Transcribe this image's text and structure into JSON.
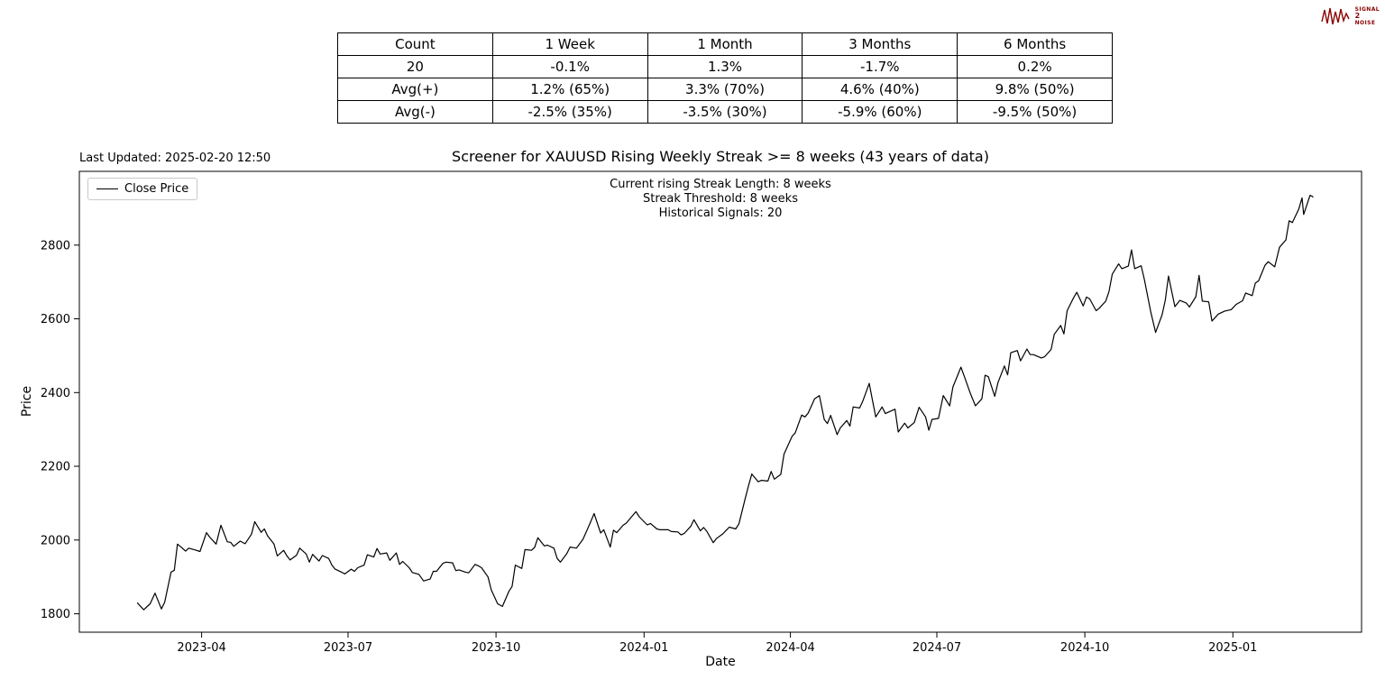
{
  "logo": {
    "text_lines": [
      "SIGNAL",
      "2",
      "NOISE"
    ],
    "color": "#8B0000"
  },
  "table": {
    "headers": [
      "Count",
      "1 Week",
      "1 Month",
      "3 Months",
      "6 Months"
    ],
    "rows": [
      [
        "20",
        "-0.1%",
        "1.3%",
        "-1.7%",
        "0.2%"
      ],
      [
        "Avg(+)",
        "1.2% (65%)",
        "3.3% (70%)",
        "4.6% (40%)",
        "9.8% (50%)"
      ],
      [
        "Avg(-)",
        "-2.5% (35%)",
        "-3.5% (30%)",
        "-5.9% (60%)",
        "-9.5% (50%)"
      ]
    ]
  },
  "chart": {
    "last_updated": "Last Updated: 2025-02-20 12:50",
    "title": "Screener for XAUUSD Rising Weekly Streak >= 8 weeks (43 years of data)",
    "annotation_lines": [
      "Current rising Streak Length: 8 weeks",
      "Streak Threshold: 8 weeks",
      "Historical Signals: 20"
    ],
    "legend_label": "Close Price",
    "xlabel": "Date",
    "ylabel": "Price",
    "line_color": "#000000"
  },
  "chart_data": {
    "type": "line",
    "title": "Screener for XAUUSD Rising Weekly Streak >= 8 weeks (43 years of data)",
    "xlabel": "Date",
    "ylabel": "Price",
    "legend_position": "upper-left",
    "grid": false,
    "ylim": [
      1750,
      3000
    ],
    "xlim": [
      "2023-01-15",
      "2025-03-22"
    ],
    "y_ticks": [
      1800,
      2000,
      2200,
      2400,
      2600,
      2800
    ],
    "x_ticks": [
      {
        "label": "2023-04",
        "date": "2023-04-01"
      },
      {
        "label": "2023-07",
        "date": "2023-07-01"
      },
      {
        "label": "2023-10",
        "date": "2023-10-01"
      },
      {
        "label": "2024-01",
        "date": "2024-01-01"
      },
      {
        "label": "2024-04",
        "date": "2024-04-01"
      },
      {
        "label": "2024-07",
        "date": "2024-07-01"
      },
      {
        "label": "2024-10",
        "date": "2024-10-01"
      },
      {
        "label": "2025-01",
        "date": "2025-01-01"
      }
    ],
    "series": [
      {
        "name": "Close Price",
        "color": "#000000",
        "points": [
          [
            "2023-02-20",
            1830
          ],
          [
            "2023-02-24",
            1811
          ],
          [
            "2023-02-28",
            1827
          ],
          [
            "2023-03-03",
            1856
          ],
          [
            "2023-03-07",
            1813
          ],
          [
            "2023-03-09",
            1831
          ],
          [
            "2023-03-13",
            1913
          ],
          [
            "2023-03-15",
            1918
          ],
          [
            "2023-03-17",
            1989
          ],
          [
            "2023-03-20",
            1978
          ],
          [
            "2023-03-22",
            1970
          ],
          [
            "2023-03-24",
            1978
          ],
          [
            "2023-03-28",
            1973
          ],
          [
            "2023-03-31",
            1969
          ],
          [
            "2023-04-04",
            2020
          ],
          [
            "2023-04-06",
            2008
          ],
          [
            "2023-04-10",
            1989
          ],
          [
            "2023-04-13",
            2040
          ],
          [
            "2023-04-17",
            1995
          ],
          [
            "2023-04-19",
            1994
          ],
          [
            "2023-04-21",
            1983
          ],
          [
            "2023-04-25",
            1997
          ],
          [
            "2023-04-28",
            1990
          ],
          [
            "2023-05-02",
            2016
          ],
          [
            "2023-05-04",
            2050
          ],
          [
            "2023-05-08",
            2021
          ],
          [
            "2023-05-10",
            2030
          ],
          [
            "2023-05-12",
            2011
          ],
          [
            "2023-05-16",
            1989
          ],
          [
            "2023-05-18",
            1957
          ],
          [
            "2023-05-22",
            1972
          ],
          [
            "2023-05-24",
            1957
          ],
          [
            "2023-05-26",
            1946
          ],
          [
            "2023-05-30",
            1959
          ],
          [
            "2023-06-01",
            1978
          ],
          [
            "2023-06-05",
            1962
          ],
          [
            "2023-06-07",
            1940
          ],
          [
            "2023-06-09",
            1961
          ],
          [
            "2023-06-13",
            1943
          ],
          [
            "2023-06-15",
            1958
          ],
          [
            "2023-06-19",
            1950
          ],
          [
            "2023-06-21",
            1932
          ],
          [
            "2023-06-23",
            1921
          ],
          [
            "2023-06-27",
            1913
          ],
          [
            "2023-06-29",
            1908
          ],
          [
            "2023-07-03",
            1921
          ],
          [
            "2023-07-05",
            1915
          ],
          [
            "2023-07-07",
            1925
          ],
          [
            "2023-07-11",
            1932
          ],
          [
            "2023-07-13",
            1960
          ],
          [
            "2023-07-17",
            1954
          ],
          [
            "2023-07-19",
            1977
          ],
          [
            "2023-07-21",
            1962
          ],
          [
            "2023-07-25",
            1965
          ],
          [
            "2023-07-27",
            1945
          ],
          [
            "2023-07-31",
            1965
          ],
          [
            "2023-08-02",
            1934
          ],
          [
            "2023-08-04",
            1942
          ],
          [
            "2023-08-08",
            1925
          ],
          [
            "2023-08-10",
            1912
          ],
          [
            "2023-08-14",
            1907
          ],
          [
            "2023-08-17",
            1889
          ],
          [
            "2023-08-21",
            1894
          ],
          [
            "2023-08-23",
            1915
          ],
          [
            "2023-08-25",
            1915
          ],
          [
            "2023-08-29",
            1937
          ],
          [
            "2023-08-31",
            1940
          ],
          [
            "2023-09-04",
            1938
          ],
          [
            "2023-09-06",
            1917
          ],
          [
            "2023-09-08",
            1919
          ],
          [
            "2023-09-12",
            1913
          ],
          [
            "2023-09-14",
            1911
          ],
          [
            "2023-09-18",
            1934
          ],
          [
            "2023-09-20",
            1930
          ],
          [
            "2023-09-22",
            1925
          ],
          [
            "2023-09-26",
            1900
          ],
          [
            "2023-09-28",
            1865
          ],
          [
            "2023-10-02",
            1827
          ],
          [
            "2023-10-05",
            1820
          ],
          [
            "2023-10-09",
            1861
          ],
          [
            "2023-10-11",
            1874
          ],
          [
            "2023-10-13",
            1932
          ],
          [
            "2023-10-17",
            1923
          ],
          [
            "2023-10-19",
            1974
          ],
          [
            "2023-10-23",
            1972
          ],
          [
            "2023-10-25",
            1980
          ],
          [
            "2023-10-27",
            2006
          ],
          [
            "2023-10-31",
            1984
          ],
          [
            "2023-11-02",
            1986
          ],
          [
            "2023-11-06",
            1978
          ],
          [
            "2023-11-08",
            1950
          ],
          [
            "2023-11-10",
            1940
          ],
          [
            "2023-11-14",
            1963
          ],
          [
            "2023-11-16",
            1981
          ],
          [
            "2023-11-20",
            1978
          ],
          [
            "2023-11-22",
            1990
          ],
          [
            "2023-11-24",
            2002
          ],
          [
            "2023-11-28",
            2041
          ],
          [
            "2023-12-01",
            2072
          ],
          [
            "2023-12-05",
            2019
          ],
          [
            "2023-12-07",
            2028
          ],
          [
            "2023-12-11",
            1981
          ],
          [
            "2023-12-13",
            2027
          ],
          [
            "2023-12-15",
            2020
          ],
          [
            "2023-12-19",
            2040
          ],
          [
            "2023-12-21",
            2046
          ],
          [
            "2023-12-27",
            2077
          ],
          [
            "2023-12-29",
            2063
          ],
          [
            "2024-01-03",
            2041
          ],
          [
            "2024-01-05",
            2045
          ],
          [
            "2024-01-09",
            2030
          ],
          [
            "2024-01-11",
            2028
          ],
          [
            "2024-01-16",
            2028
          ],
          [
            "2024-01-18",
            2023
          ],
          [
            "2024-01-22",
            2022
          ],
          [
            "2024-01-24",
            2014
          ],
          [
            "2024-01-26",
            2018
          ],
          [
            "2024-01-30",
            2037
          ],
          [
            "2024-02-01",
            2055
          ],
          [
            "2024-02-05",
            2025
          ],
          [
            "2024-02-07",
            2034
          ],
          [
            "2024-02-09",
            2024
          ],
          [
            "2024-02-13",
            1993
          ],
          [
            "2024-02-15",
            2004
          ],
          [
            "2024-02-19",
            2017
          ],
          [
            "2024-02-21",
            2026
          ],
          [
            "2024-02-23",
            2035
          ],
          [
            "2024-02-27",
            2030
          ],
          [
            "2024-02-29",
            2044
          ],
          [
            "2024-03-04",
            2115
          ],
          [
            "2024-03-06",
            2148
          ],
          [
            "2024-03-08",
            2179
          ],
          [
            "2024-03-12",
            2158
          ],
          [
            "2024-03-14",
            2162
          ],
          [
            "2024-03-18",
            2160
          ],
          [
            "2024-03-20",
            2186
          ],
          [
            "2024-03-22",
            2165
          ],
          [
            "2024-03-26",
            2178
          ],
          [
            "2024-03-28",
            2233
          ],
          [
            "2024-04-02",
            2281
          ],
          [
            "2024-04-04",
            2291
          ],
          [
            "2024-04-08",
            2339
          ],
          [
            "2024-04-10",
            2334
          ],
          [
            "2024-04-12",
            2344
          ],
          [
            "2024-04-16",
            2383
          ],
          [
            "2024-04-19",
            2392
          ],
          [
            "2024-04-22",
            2327
          ],
          [
            "2024-04-24",
            2316
          ],
          [
            "2024-04-26",
            2338
          ],
          [
            "2024-04-30",
            2286
          ],
          [
            "2024-05-02",
            2304
          ],
          [
            "2024-05-06",
            2324
          ],
          [
            "2024-05-08",
            2309
          ],
          [
            "2024-05-10",
            2361
          ],
          [
            "2024-05-14",
            2358
          ],
          [
            "2024-05-16",
            2377
          ],
          [
            "2024-05-20",
            2425
          ],
          [
            "2024-05-22",
            2379
          ],
          [
            "2024-05-24",
            2334
          ],
          [
            "2024-05-28",
            2361
          ],
          [
            "2024-05-30",
            2343
          ],
          [
            "2024-06-03",
            2351
          ],
          [
            "2024-06-05",
            2355
          ],
          [
            "2024-06-07",
            2293
          ],
          [
            "2024-06-11",
            2317
          ],
          [
            "2024-06-13",
            2304
          ],
          [
            "2024-06-17",
            2319
          ],
          [
            "2024-06-20",
            2360
          ],
          [
            "2024-06-24",
            2334
          ],
          [
            "2024-06-26",
            2298
          ],
          [
            "2024-06-28",
            2327
          ],
          [
            "2024-07-02",
            2330
          ],
          [
            "2024-07-05",
            2392
          ],
          [
            "2024-07-09",
            2364
          ],
          [
            "2024-07-11",
            2415
          ],
          [
            "2024-07-16",
            2469
          ],
          [
            "2024-07-18",
            2445
          ],
          [
            "2024-07-22",
            2396
          ],
          [
            "2024-07-25",
            2364
          ],
          [
            "2024-07-29",
            2383
          ],
          [
            "2024-07-31",
            2447
          ],
          [
            "2024-08-02",
            2443
          ],
          [
            "2024-08-06",
            2390
          ],
          [
            "2024-08-08",
            2427
          ],
          [
            "2024-08-12",
            2472
          ],
          [
            "2024-08-14",
            2448
          ],
          [
            "2024-08-16",
            2508
          ],
          [
            "2024-08-20",
            2514
          ],
          [
            "2024-08-22",
            2486
          ],
          [
            "2024-08-26",
            2518
          ],
          [
            "2024-08-28",
            2503
          ],
          [
            "2024-08-30",
            2503
          ],
          [
            "2024-09-04",
            2494
          ],
          [
            "2024-09-06",
            2497
          ],
          [
            "2024-09-10",
            2517
          ],
          [
            "2024-09-12",
            2558
          ],
          [
            "2024-09-16",
            2582
          ],
          [
            "2024-09-18",
            2559
          ],
          [
            "2024-09-20",
            2622
          ],
          [
            "2024-09-24",
            2657
          ],
          [
            "2024-09-26",
            2672
          ],
          [
            "2024-09-30",
            2635
          ],
          [
            "2024-10-02",
            2659
          ],
          [
            "2024-10-04",
            2654
          ],
          [
            "2024-10-08",
            2622
          ],
          [
            "2024-10-10",
            2629
          ],
          [
            "2024-10-14",
            2648
          ],
          [
            "2024-10-16",
            2674
          ],
          [
            "2024-10-18",
            2721
          ],
          [
            "2024-10-22",
            2749
          ],
          [
            "2024-10-24",
            2736
          ],
          [
            "2024-10-28",
            2743
          ],
          [
            "2024-10-30",
            2787
          ],
          [
            "2024-11-01",
            2736
          ],
          [
            "2024-11-05",
            2744
          ],
          [
            "2024-11-07",
            2707
          ],
          [
            "2024-11-11",
            2618
          ],
          [
            "2024-11-14",
            2563
          ],
          [
            "2024-11-18",
            2611
          ],
          [
            "2024-11-20",
            2650
          ],
          [
            "2024-11-22",
            2716
          ],
          [
            "2024-11-26",
            2633
          ],
          [
            "2024-11-29",
            2650
          ],
          [
            "2024-12-03",
            2643
          ],
          [
            "2024-12-05",
            2632
          ],
          [
            "2024-12-09",
            2660
          ],
          [
            "2024-12-11",
            2718
          ],
          [
            "2024-12-13",
            2648
          ],
          [
            "2024-12-17",
            2646
          ],
          [
            "2024-12-19",
            2594
          ],
          [
            "2024-12-23",
            2613
          ],
          [
            "2024-12-27",
            2621
          ],
          [
            "2024-12-31",
            2625
          ],
          [
            "2025-01-03",
            2639
          ],
          [
            "2025-01-07",
            2649
          ],
          [
            "2025-01-09",
            2670
          ],
          [
            "2025-01-13",
            2663
          ],
          [
            "2025-01-15",
            2697
          ],
          [
            "2025-01-17",
            2703
          ],
          [
            "2025-01-21",
            2745
          ],
          [
            "2025-01-23",
            2755
          ],
          [
            "2025-01-27",
            2741
          ],
          [
            "2025-01-30",
            2794
          ],
          [
            "2025-02-03",
            2814
          ],
          [
            "2025-02-05",
            2866
          ],
          [
            "2025-02-07",
            2861
          ],
          [
            "2025-02-11",
            2898
          ],
          [
            "2025-02-13",
            2928
          ],
          [
            "2025-02-14",
            2883
          ],
          [
            "2025-02-18",
            2935
          ],
          [
            "2025-02-19",
            2933
          ],
          [
            "2025-02-20",
            2930
          ]
        ]
      }
    ]
  }
}
